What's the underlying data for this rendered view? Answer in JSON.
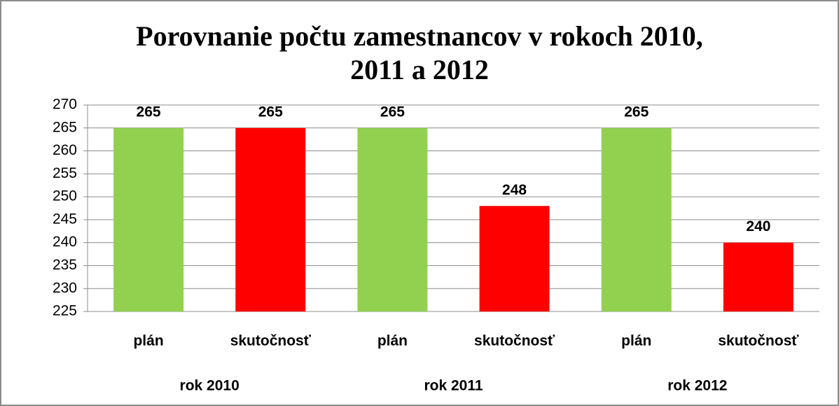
{
  "chart_data": {
    "type": "bar",
    "title": "Porovnanie počtu zamestnancov v rokoch 2010, 2011 a 2012",
    "categories": [
      "plán",
      "skutočnosť",
      "plán",
      "skutočnosť",
      "plán",
      "skutočnosť"
    ],
    "groups": [
      "rok 2010",
      "rok 2011",
      "rok 2012"
    ],
    "values": [
      265,
      265,
      265,
      248,
      265,
      240
    ],
    "colors": [
      "#92d050",
      "#ff0000",
      "#92d050",
      "#ff0000",
      "#92d050",
      "#ff0000"
    ],
    "ylim": [
      225,
      270
    ],
    "yticks": [
      225,
      230,
      235,
      240,
      245,
      250,
      255,
      260,
      265,
      270
    ],
    "grid": true
  }
}
